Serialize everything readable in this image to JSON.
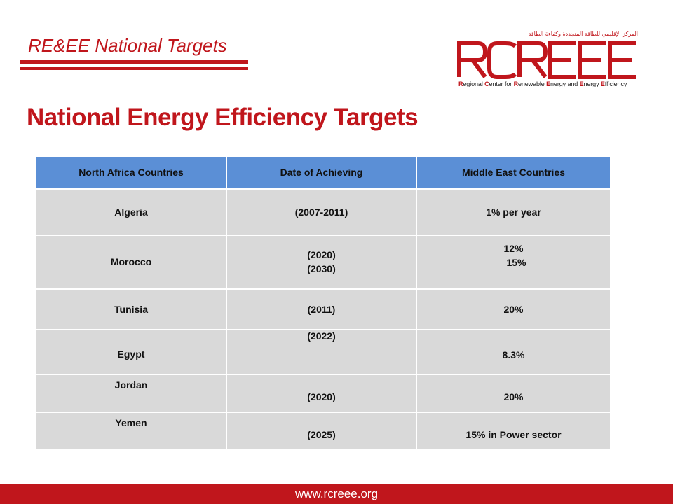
{
  "header": {
    "section_title": "RE&EE National Targets",
    "logo_arabic": "المركز الإقليمي للطاقة المتجددة وكفاءة الطاقة",
    "logo_text": "RCREEE",
    "logo_tagline_parts": [
      "R",
      "egional ",
      "C",
      "enter for ",
      "R",
      "enewable ",
      "E",
      "nergy and ",
      "E",
      "nergy ",
      "E",
      "fficiency"
    ]
  },
  "main": {
    "title": "National Energy Efficiency Targets"
  },
  "table": {
    "columns": [
      "North Africa Countries",
      "Date of Achieving",
      "Middle East Countries"
    ],
    "rows": [
      {
        "country": "Algeria",
        "dates": [
          "(2007-2011)"
        ],
        "targets": [
          "1% per year"
        ]
      },
      {
        "country": "Morocco",
        "dates": [
          "(2020)",
          "(2030)"
        ],
        "targets": [
          "12%",
          "15%"
        ]
      },
      {
        "country": "Tunisia",
        "dates": [
          "(2011)"
        ],
        "targets": [
          "20%"
        ]
      },
      {
        "country": "Egypt",
        "dates": [
          "(2022)"
        ],
        "targets": [
          "8.3%"
        ]
      },
      {
        "country": "Jordan",
        "dates": [
          "(2020)"
        ],
        "targets": [
          "20%"
        ]
      },
      {
        "country": "Yemen",
        "dates": [
          "(2025)"
        ],
        "targets": [
          "15% in Power sector"
        ]
      }
    ]
  },
  "footer": {
    "url": "www.rcreee.org"
  },
  "colors": {
    "brand_red": "#c0161c",
    "header_blue": "#5b8fd6",
    "cell_gray": "#d9d9d9"
  }
}
